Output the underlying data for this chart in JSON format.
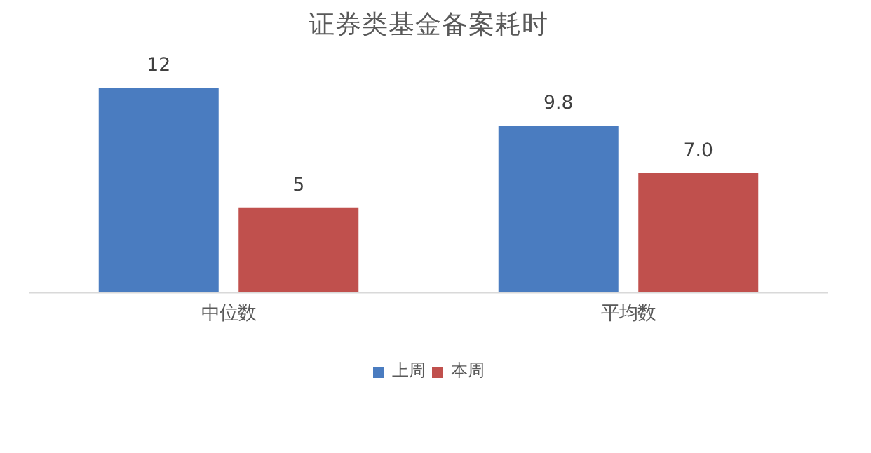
{
  "chart_data": {
    "type": "bar",
    "title": "证券类基金备案耗时",
    "categories": [
      "中位数",
      "平均数"
    ],
    "series": [
      {
        "name": "上周",
        "color": "#4a7cc0",
        "values": [
          12,
          9.8
        ],
        "value_labels": [
          "12",
          "9.8"
        ]
      },
      {
        "name": "本周",
        "color": "#c0504d",
        "values": [
          5,
          7.0
        ],
        "value_labels": [
          "5",
          "7.0"
        ]
      }
    ],
    "legend": "bottom"
  }
}
